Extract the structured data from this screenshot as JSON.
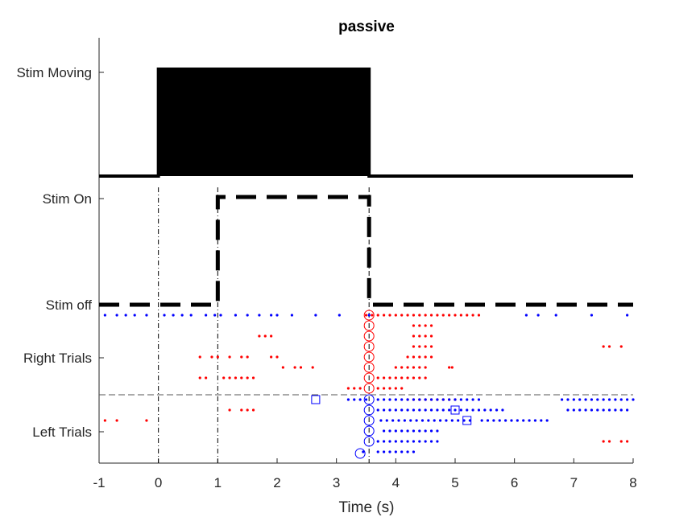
{
  "chart_data": {
    "type": "scatter",
    "title": "passive",
    "xlabel": "Time (s)",
    "ylabel": "",
    "xlim": [
      -1,
      8
    ],
    "xticks": [
      -1,
      0,
      1,
      2,
      3,
      4,
      5,
      6,
      7,
      8
    ],
    "x_tick_labels": [
      "-1",
      "0",
      "1",
      "2",
      "3",
      "4",
      "5",
      "6",
      "7",
      "8"
    ],
    "y_tick_labels": [
      "Stim Moving",
      "Stim On",
      "Stim off",
      "Right Trials",
      "Left Trials"
    ],
    "colors": {
      "right": "#ff0000",
      "left": "#0000ff",
      "trace": "#000000",
      "grid": "#262626"
    },
    "stim_moving": {
      "x": [
        -1,
        0,
        0,
        3.55,
        3.55,
        8
      ],
      "y": [
        0,
        0,
        1,
        1,
        0,
        0
      ]
    },
    "stim_on": {
      "x": [
        -1,
        1,
        1,
        3.55,
        3.55,
        8
      ],
      "y": [
        0,
        0,
        1,
        1,
        0,
        0
      ]
    },
    "event_lines_x": [
      0,
      1,
      3.55
    ],
    "trial_divider": "between Right Trials and Left Trials",
    "series": [
      {
        "color": "red",
        "trials": [
          [
            3.5,
            3.6,
            3.7,
            3.8,
            3.9,
            4.0,
            4.1,
            4.2,
            4.3,
            4.4,
            4.5,
            4.6,
            4.7,
            4.8,
            4.9,
            5.0,
            5.1,
            5.2,
            5.3,
            5.4
          ],
          [
            4.3,
            4.4,
            4.5,
            4.6
          ],
          [
            1.7,
            1.8,
            1.9,
            3.55,
            4.3,
            4.4,
            4.5,
            4.6
          ],
          [
            4.3,
            4.4,
            4.5,
            4.6,
            7.5,
            7.6,
            7.8
          ],
          [
            0.7,
            0.9,
            1.0,
            1.2,
            1.4,
            1.5,
            1.9,
            2.0,
            3.55,
            4.2,
            4.3,
            4.4,
            4.5,
            4.6
          ],
          [
            2.1,
            2.3,
            2.4,
            2.6,
            3.55,
            4.0,
            4.1,
            4.2,
            4.3,
            4.4,
            4.5,
            4.9,
            4.95
          ],
          [
            0.7,
            0.8,
            1.1,
            1.2,
            1.3,
            1.4,
            1.5,
            1.6,
            3.55,
            3.7,
            3.8,
            3.9,
            4.0,
            4.1,
            4.2,
            4.3,
            4.4,
            4.5
          ],
          [
            3.2,
            3.3,
            3.4,
            3.55,
            3.7,
            3.8,
            3.9,
            4.0,
            4.1
          ],
          [
            3.55,
            4.2,
            4.3,
            4.4,
            4.5,
            4.6,
            4.7,
            4.8,
            4.9,
            5.0
          ]
        ]
      },
      {
        "color": "blue",
        "trials": [
          [
            -0.9,
            -0.7,
            -0.55,
            -0.4,
            -0.2,
            0.1,
            0.25,
            0.4,
            0.55,
            0.8,
            0.95,
            1.05,
            1.3,
            1.5,
            1.7,
            1.9,
            2.0,
            2.25,
            2.65,
            3.05,
            3.55,
            6.2,
            6.4,
            6.7,
            7.3,
            7.9
          ],
          [
            3.2,
            3.3,
            3.4,
            3.5,
            3.55,
            3.7,
            3.8,
            3.9,
            4.0,
            4.1,
            4.2,
            4.3,
            4.4,
            4.5,
            4.6,
            4.7,
            4.8,
            4.9,
            5.0,
            5.1,
            5.2,
            5.3,
            5.4,
            6.8,
            6.9,
            7.0,
            7.1,
            7.2,
            7.3,
            7.4,
            7.5,
            7.6,
            7.7,
            7.8,
            7.9,
            8.0
          ],
          [
            3.55,
            3.7,
            3.8,
            3.9,
            4.0,
            4.1,
            4.2,
            4.3,
            4.4,
            4.5,
            4.6,
            4.7,
            4.8,
            4.9,
            5.0,
            5.1,
            5.2,
            5.3,
            5.4,
            5.5,
            5.6,
            5.7,
            5.8,
            6.9,
            7.0,
            7.1,
            7.2,
            7.3,
            7.4,
            7.5,
            7.6,
            7.7,
            7.8,
            7.9
          ],
          [
            3.55,
            3.75,
            3.85,
            3.95,
            4.05,
            4.15,
            4.25,
            4.35,
            4.45,
            4.55,
            4.65,
            4.75,
            4.85,
            4.95,
            5.05,
            5.15,
            5.25,
            5.45,
            5.55,
            5.65,
            5.75,
            5.85,
            5.95,
            6.05,
            6.15,
            6.25,
            6.35,
            6.45,
            6.55
          ],
          [
            3.55,
            3.8,
            3.9,
            4.0,
            4.1,
            4.2,
            4.3,
            4.4,
            4.5,
            4.6,
            4.7
          ],
          [
            3.55,
            3.7,
            3.8,
            3.9,
            4.0,
            4.1,
            4.2,
            4.3,
            4.4,
            4.5,
            4.6,
            4.7
          ],
          [
            3.45,
            3.7,
            3.8,
            3.9,
            4.0,
            4.1,
            4.2,
            4.3
          ]
        ]
      },
      {
        "color": "red",
        "trials_below_divider": [
          [
            1.2,
            1.4,
            1.5,
            1.6
          ],
          [
            -0.9,
            -0.7,
            -0.2
          ],
          [
            7.5,
            7.6,
            7.8,
            7.9
          ]
        ]
      }
    ],
    "markers": {
      "right_circles_x": 3.55,
      "left_circles_x": 3.55,
      "left_squares": [
        {
          "x": 2.65,
          "row": 0
        },
        {
          "x": 5.0,
          "row": 1
        },
        {
          "x": 5.2,
          "row": 2
        }
      ],
      "left_extra_circle": {
        "x": 3.4,
        "row": 6
      }
    }
  }
}
